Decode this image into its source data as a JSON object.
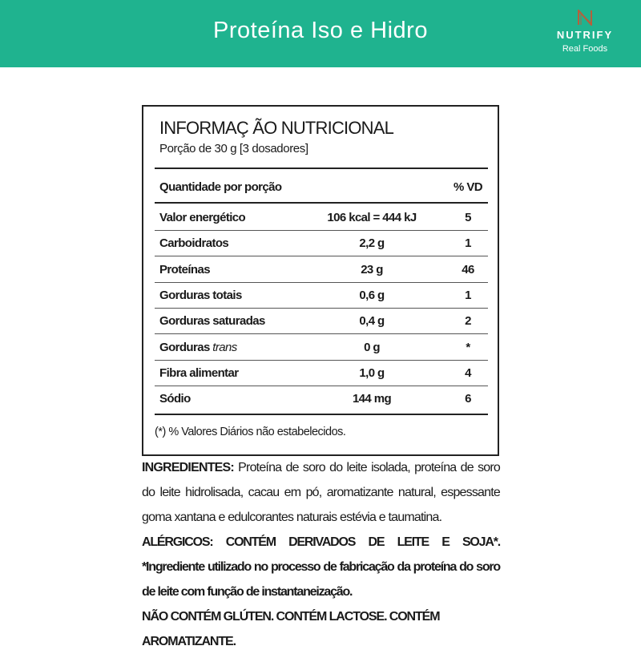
{
  "header": {
    "title": "Proteína Iso e Hidro",
    "brand": "NUTRIFY",
    "tagline": "Real Foods",
    "color": "#1fb38f"
  },
  "label": {
    "title": "INFORMAÇ ÃO NUTRICIONAL",
    "portion": "Porção de 30 g  [3 dosadores]",
    "col_qty": "Quantidade por porção",
    "col_vd": "% VD",
    "rows": [
      {
        "name": "Valor energético",
        "amount": "106 kcal = 444 kJ",
        "vd": "5"
      },
      {
        "name": "Carboidratos",
        "amount": "2,2 g",
        "vd": "1"
      },
      {
        "name": "Proteínas",
        "amount": "23 g",
        "vd": "46"
      },
      {
        "name": "Gorduras totais",
        "amount": "0,6 g",
        "vd": "1"
      },
      {
        "name": "Gorduras saturadas",
        "amount": "0,4 g",
        "vd": "2"
      },
      {
        "name": "Gorduras",
        "name_italic": "trans",
        "amount": "0 g",
        "vd": "*"
      },
      {
        "name": "Fibra alimentar",
        "amount": "1,0 g",
        "vd": "4"
      },
      {
        "name": "Sódio",
        "amount": "144 mg",
        "vd": "6"
      }
    ],
    "footnote": "(*) % Valores Diários não estabelecidos."
  },
  "ingredients": {
    "label": "INGREDIENTES:",
    "text": " Proteína de soro do leite isolada, proteína de soro do leite hidrolisada, cacau em pó,  aromatizante natural, espessante goma xantana e edulcorantes naturais estévia e taumatina."
  },
  "allergens": {
    "text": "ALÉRGICOS: CONTÉM DERIVADOS DE LEITE E SOJA*. *Ingrediente utilizado no processo de fabricação da proteína do soro de leite com função de instantaneização.",
    "notice": "NÃO CONTÉM GLÚTEN. CONTÉM LACTOSE. CONTÉM AROMATIZANTE."
  }
}
